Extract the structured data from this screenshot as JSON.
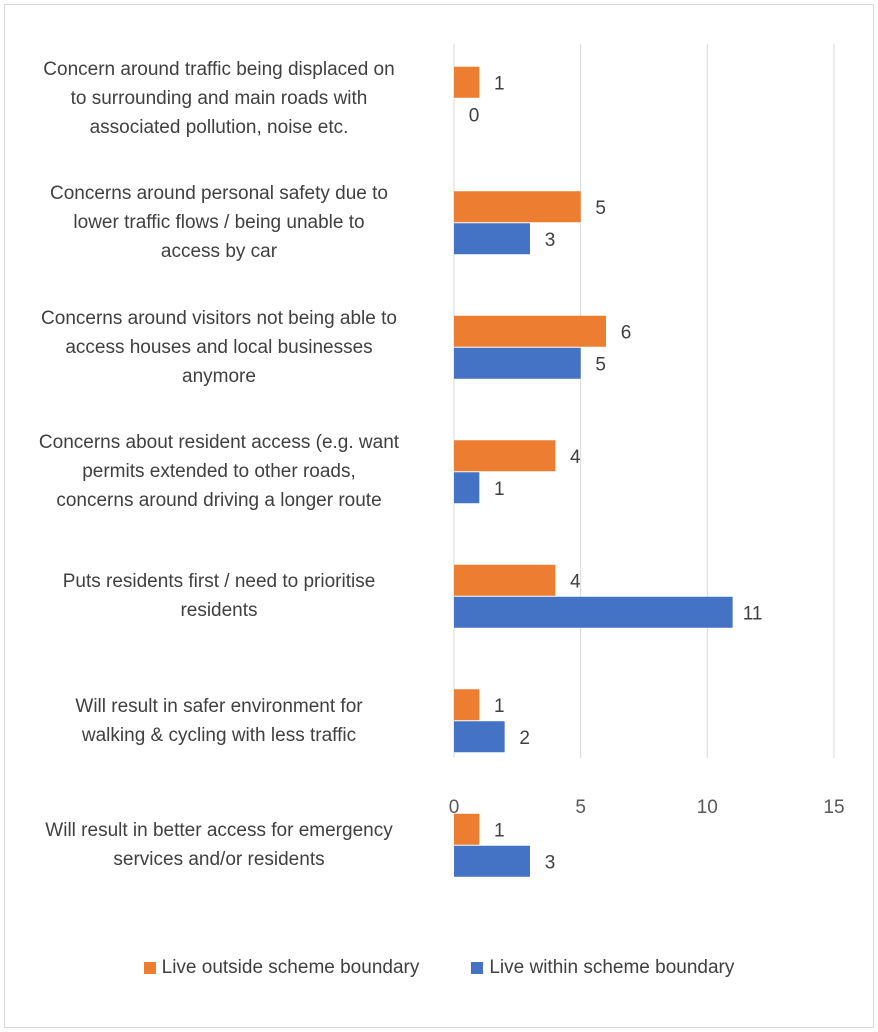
{
  "chart_data": {
    "type": "bar",
    "orientation": "horizontal",
    "categories": [
      "Concern around traffic being displaced on to surrounding and main roads with associated pollution, noise etc.",
      "Concerns around personal safety due to lower traffic flows / being unable to access by car",
      "Concerns around visitors not being able to access houses and local businesses anymore",
      "Concerns about resident access (e.g. want permits extended to other roads, concerns around driving a longer route",
      "Puts residents first / need to prioritise residents",
      "Will result in safer environment for walking & cycling with less traffic",
      "Will result in better access for emergency services and/or residents"
    ],
    "category_lines": [
      [
        "Concern around traffic being displaced on",
        "to surrounding and main roads with",
        "associated pollution, noise etc."
      ],
      [
        "Concerns around personal safety due to",
        "lower traffic flows / being unable to",
        "access by car"
      ],
      [
        "Concerns around visitors not being able to",
        "access houses and local businesses",
        "anymore"
      ],
      [
        "Concerns about resident access (e.g. want",
        "permits extended to other roads,",
        "concerns around driving a longer route"
      ],
      [
        "Puts residents first / need to prioritise",
        "residents"
      ],
      [
        "Will result in safer environment for",
        "walking & cycling with less traffic"
      ],
      [
        "Will result in better access for emergency",
        "services and/or residents"
      ]
    ],
    "series": [
      {
        "name": "Live outside scheme boundary",
        "color": "#ED7D31",
        "values": [
          1,
          5,
          6,
          4,
          4,
          1,
          1
        ]
      },
      {
        "name": "Live within scheme boundary",
        "color": "#4472C4",
        "values": [
          0,
          3,
          5,
          1,
          11,
          2,
          3
        ]
      }
    ],
    "xlim": [
      0,
      15
    ],
    "x_ticks": [
      0,
      5,
      10,
      15
    ],
    "gridlines": "vertical",
    "data_labels": true,
    "legend_position": "bottom",
    "title": "",
    "xlabel": "",
    "ylabel": ""
  }
}
